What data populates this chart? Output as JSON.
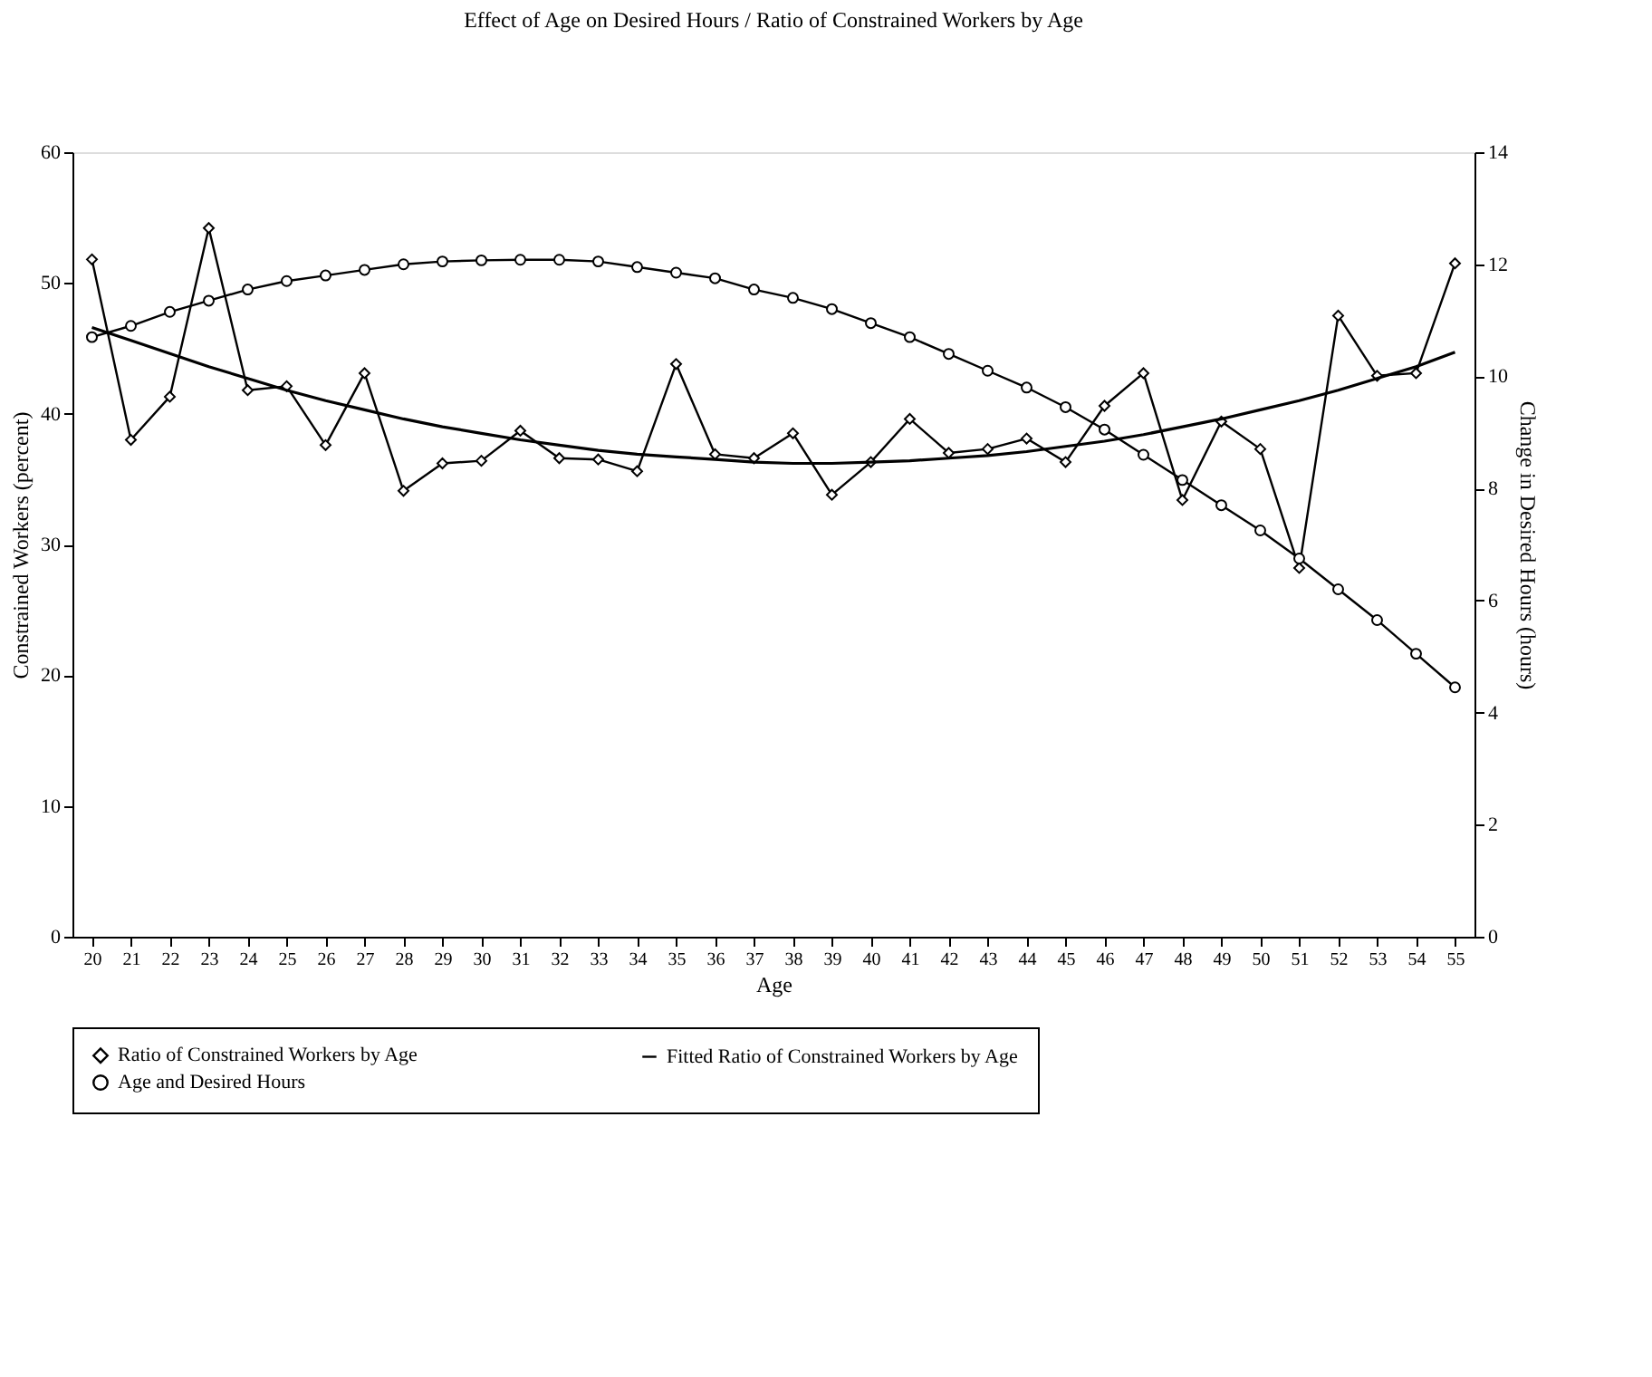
{
  "chart_data": {
    "type": "line",
    "title": "Effect of Age on Desired Hours / Ratio of Constrained Workers by Age",
    "xlabel": "Age",
    "ylabel": "Constrained Workers (percent)",
    "y2label": "Change in Desired Hours (hours)",
    "categories": [
      "20",
      "21",
      "22",
      "23",
      "24",
      "25",
      "26",
      "27",
      "28",
      "29",
      "30",
      "31",
      "32",
      "33",
      "34",
      "35",
      "36",
      "37",
      "38",
      "39",
      "40",
      "41",
      "42",
      "43",
      "44",
      "45",
      "46",
      "47",
      "48",
      "49",
      "50",
      "51",
      "52",
      "53",
      "54",
      "55"
    ],
    "ylim": [
      0,
      60
    ],
    "yticks": [
      0,
      10,
      20,
      30,
      40,
      50,
      60
    ],
    "y2lim": [
      0,
      14
    ],
    "y2ticks": [
      0,
      2,
      4,
      6,
      8,
      10,
      12,
      14
    ],
    "grid": false,
    "legend": "bottom",
    "series": [
      {
        "name": "Ratio of Constrained Workers by Age",
        "color": "#000000",
        "marker": "diamond",
        "values": [
          51.8,
          38.0,
          41.3,
          54.2,
          41.8,
          42.1,
          37.6,
          43.1,
          34.1,
          36.2,
          36.4,
          38.7,
          36.6,
          36.5,
          35.6,
          43.8,
          36.9,
          36.6,
          38.5,
          33.8,
          36.3,
          39.6,
          37.0,
          37.3,
          38.1,
          36.3,
          40.6,
          43.1,
          33.4,
          39.4,
          37.3,
          28.2,
          47.5,
          42.9,
          43.1,
          51.5
        ]
      },
      {
        "name": "Fitted Ratio of Constrained Workers by Age",
        "color": "#000000",
        "marker": "none",
        "values": [
          46.6,
          45.6,
          44.6,
          43.6,
          42.7,
          41.8,
          41.0,
          40.3,
          39.6,
          39.0,
          38.5,
          38.0,
          37.6,
          37.2,
          36.9,
          36.7,
          36.5,
          36.3,
          36.2,
          36.2,
          36.3,
          36.4,
          36.6,
          36.8,
          37.1,
          37.5,
          37.9,
          38.4,
          39.0,
          39.6,
          40.3,
          41.0,
          41.8,
          42.7,
          43.6,
          44.7
        ]
      },
      {
        "name": "Age and Desired Hours",
        "color": "#000000",
        "marker": "circle",
        "axis": "y2",
        "values": [
          10.7,
          10.9,
          11.15,
          11.35,
          11.55,
          11.7,
          11.8,
          11.9,
          12.0,
          12.05,
          12.07,
          12.08,
          12.08,
          12.05,
          11.95,
          11.85,
          11.75,
          11.55,
          11.4,
          11.2,
          10.95,
          10.7,
          10.4,
          10.1,
          9.8,
          9.45,
          9.05,
          8.6,
          8.15,
          7.7,
          7.25,
          6.75,
          6.2,
          5.65,
          5.05,
          4.45
        ]
      }
    ]
  }
}
